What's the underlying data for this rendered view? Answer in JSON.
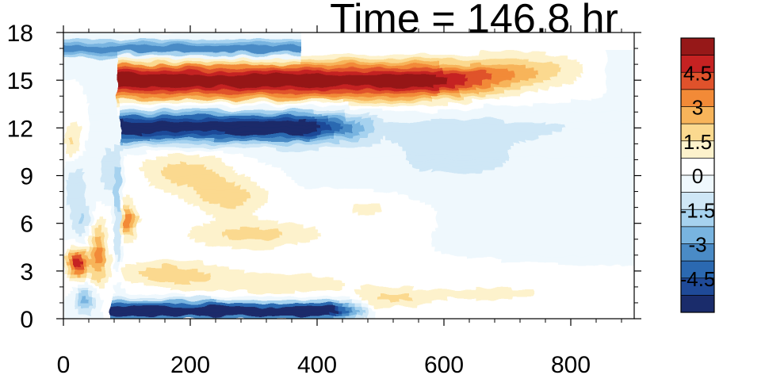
{
  "title": "Time = 146.8 hr",
  "chart_data": {
    "type": "heatmap",
    "title": "Time = 146.8 hr",
    "xlabel": "",
    "ylabel": "",
    "xlim": [
      0,
      900
    ],
    "ylim": [
      0,
      18
    ],
    "x_ticks": [
      0,
      200,
      400,
      600,
      800
    ],
    "x_tick_labels": [
      "0",
      "200",
      "400",
      "600",
      "800"
    ],
    "y_ticks": [
      0,
      3,
      6,
      9,
      12,
      15,
      18
    ],
    "y_tick_labels": [
      "0",
      "3",
      "6",
      "9",
      "12",
      "15",
      "18"
    ],
    "colorbar": {
      "levels": [
        -5.25,
        -4.5,
        -3.75,
        -3,
        -2.25,
        -1.5,
        -0.75,
        0,
        0.75,
        1.5,
        2.25,
        3,
        3.75,
        4.5,
        5.25
      ],
      "tick_labels": [
        "4.5",
        "3",
        "1.5",
        "0",
        "-1.5",
        "-3",
        "-4.5"
      ],
      "colors": [
        "#1a2c6b",
        "#1f4a98",
        "#2b69b1",
        "#4a8bc6",
        "#78b4e0",
        "#a6d2ef",
        "#cfe7f6",
        "#eff8fd",
        "#ffffff",
        "#fdf2cc",
        "#fbd98f",
        "#f7b45a",
        "#f28a37",
        "#e0522b",
        "#c52222",
        "#961818"
      ]
    },
    "features": [
      {
        "kind": "band",
        "polarity": "positive",
        "x_range": [
          90,
          800
        ],
        "y_center": 15,
        "peak_value": 5.25,
        "note": "strong warm band decaying toward x=800"
      },
      {
        "kind": "band",
        "polarity": "negative",
        "x_range": [
          90,
          480
        ],
        "y_center": 12,
        "peak_value": -5.25,
        "note": "strong cold band, strongest near x=250"
      },
      {
        "kind": "band",
        "polarity": "negative",
        "x_range": [
          75,
          480
        ],
        "y_center": 0.6,
        "peak_value": -5.25,
        "note": "cold band near surface"
      },
      {
        "kind": "band",
        "polarity": "negative",
        "x_range": [
          0,
          370
        ],
        "y_center": 17,
        "peak_value": -3.5,
        "note": "upper cold band"
      },
      {
        "kind": "blob",
        "polarity": "positive",
        "x": 22,
        "y": 3.5,
        "peak_value": 4.8
      },
      {
        "kind": "patch",
        "polarity": "positive",
        "x_range": [
          100,
          420
        ],
        "y_range": [
          2,
          10
        ],
        "peak_value": 2.2
      },
      {
        "kind": "patch",
        "polarity": "negative",
        "x_range": [
          430,
          780
        ],
        "y_range": [
          7,
          12
        ],
        "peak_value": -1.0
      }
    ]
  }
}
